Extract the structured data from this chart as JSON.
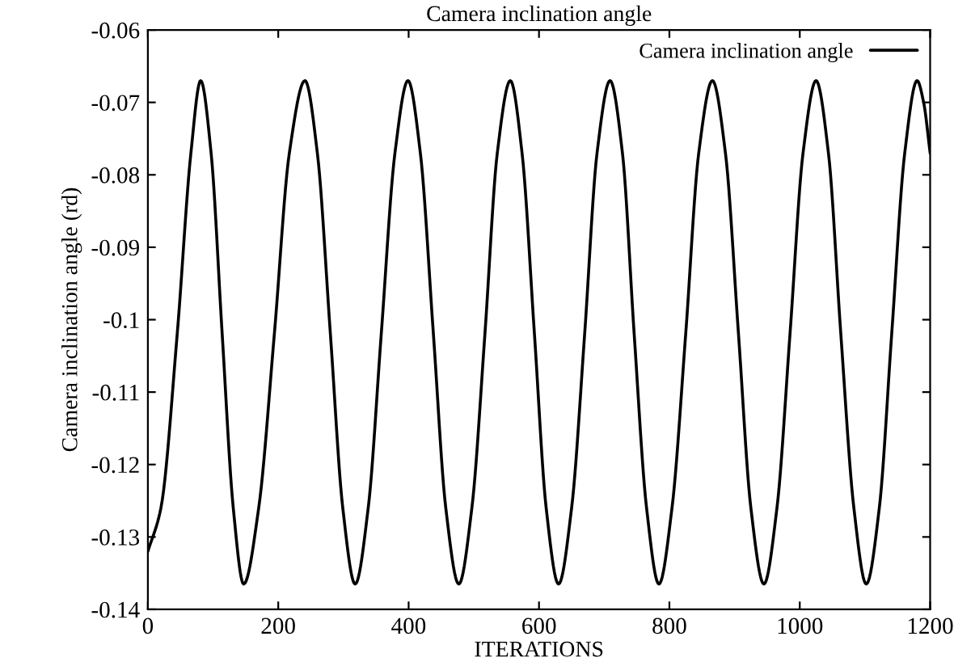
{
  "chart_data": {
    "type": "line",
    "title": "Camera inclination angle",
    "xlabel": "ITERATIONS",
    "ylabel": "Camera inclination angle (rd)",
    "xlim": [
      0,
      1200
    ],
    "xticks": [
      0,
      200,
      400,
      600,
      800,
      1000,
      1200
    ],
    "ylim": [
      -0.14,
      -0.06
    ],
    "yticks": [
      -0.14,
      -0.13,
      -0.12,
      -0.11,
      -0.1,
      -0.09,
      -0.08,
      -0.07,
      -0.06
    ],
    "grid": false,
    "legend": "top right",
    "marker": "none",
    "line_style": "solid",
    "series": [
      {
        "name": "Camera inclination angle",
        "color": "#000000",
        "x": [
          0,
          20,
          45,
          66,
          81,
          97,
          114,
          131,
          147,
          170,
          194,
          217,
          241,
          260,
          280,
          299,
          318,
          338,
          358,
          379,
          399,
          418,
          438,
          457,
          477,
          497,
          517,
          536,
          556,
          574,
          593,
          611,
          630,
          650,
          670,
          689,
          709,
          728,
          746,
          765,
          784,
          804,
          825,
          845,
          866,
          886,
          906,
          925,
          945,
          965,
          985,
          1005,
          1025,
          1044,
          1063,
          1083,
          1102,
          1122,
          1141,
          1161,
          1180,
          1190,
          1200
        ],
        "values": [
          -0.132,
          -0.126,
          -0.102,
          -0.077,
          -0.067,
          -0.077,
          -0.102,
          -0.126,
          -0.1365,
          -0.126,
          -0.102,
          -0.077,
          -0.067,
          -0.077,
          -0.102,
          -0.126,
          -0.1365,
          -0.126,
          -0.102,
          -0.077,
          -0.067,
          -0.077,
          -0.102,
          -0.126,
          -0.1365,
          -0.126,
          -0.102,
          -0.077,
          -0.067,
          -0.077,
          -0.102,
          -0.126,
          -0.1365,
          -0.126,
          -0.102,
          -0.077,
          -0.067,
          -0.077,
          -0.102,
          -0.126,
          -0.1365,
          -0.126,
          -0.102,
          -0.077,
          -0.067,
          -0.077,
          -0.102,
          -0.126,
          -0.1365,
          -0.126,
          -0.102,
          -0.077,
          -0.067,
          -0.077,
          -0.102,
          -0.126,
          -0.1365,
          -0.126,
          -0.102,
          -0.077,
          -0.067,
          -0.07,
          -0.077
        ]
      }
    ]
  }
}
